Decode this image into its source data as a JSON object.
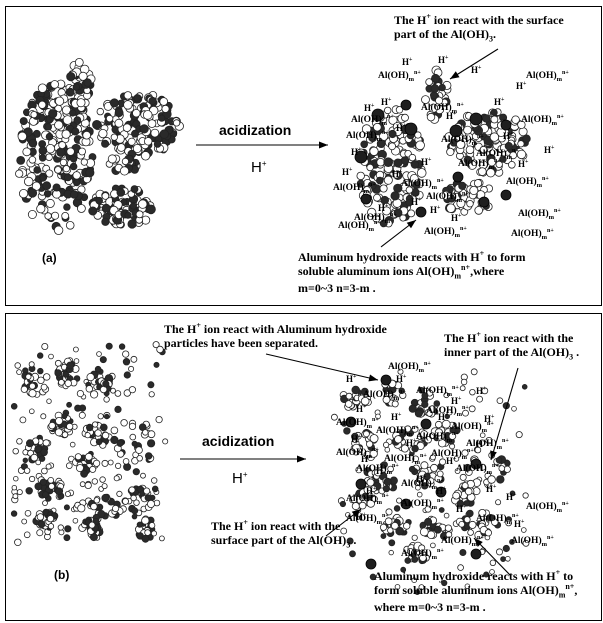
{
  "panel_a": {
    "label": "(a)",
    "arrow_label": "acidization",
    "reagent": "H",
    "reagent_charge": "+",
    "note_top": {
      "p1": "The H",
      "sup": "+",
      "p2": " ion react with the surface",
      "line2": "part of the Al(OH)",
      "sub": "3",
      "end": "."
    },
    "note_bottom": {
      "line1_a": "Aluminum hydroxide reacts with H",
      "line1_sup": "+",
      "line1_b": " to form",
      "line2_a": "soluble aluminum ions Al(OH)",
      "line2_sub": "m",
      "line2_sup": "n+",
      "line2_b": ",where",
      "line3": "m=0~3 n=3-m ."
    }
  },
  "panel_b": {
    "label": "(b)",
    "arrow_label": "acidization",
    "reagent": "H",
    "reagent_charge": "+",
    "note_top_left": {
      "p1": "The H",
      "sup": "+",
      "p2": " ion react with Aluminum hydroxide",
      "line2": "particles have been separated."
    },
    "note_top_right": {
      "p1": "The H",
      "sup": "+",
      "p2": " ion react with the",
      "line2": "inner part of the Al(OH)",
      "sub": "3",
      "end": " ."
    },
    "note_mid": {
      "p1": "The H",
      "sup": "+",
      "p2": " ion react with the",
      "line2": "surface  part of the Al(OH)",
      "sub": "3",
      "end": " ."
    },
    "note_bottom": {
      "line1_a": "Aluminum hydroxide reacts with H",
      "line1_sup": "+",
      "line1_b": " to",
      "line2_a": "form soluble aluminum ions  Al(OH)",
      "line2_sub": "m",
      "line2_sup": "n+",
      "line2_b": ",",
      "line3": "where  m=0~3 n=3-m ."
    }
  },
  "species": {
    "ion": "Al(OH)",
    "ion_sub": "m",
    "ion_sup": "n+",
    "proton": "H",
    "proton_sup": "+"
  }
}
